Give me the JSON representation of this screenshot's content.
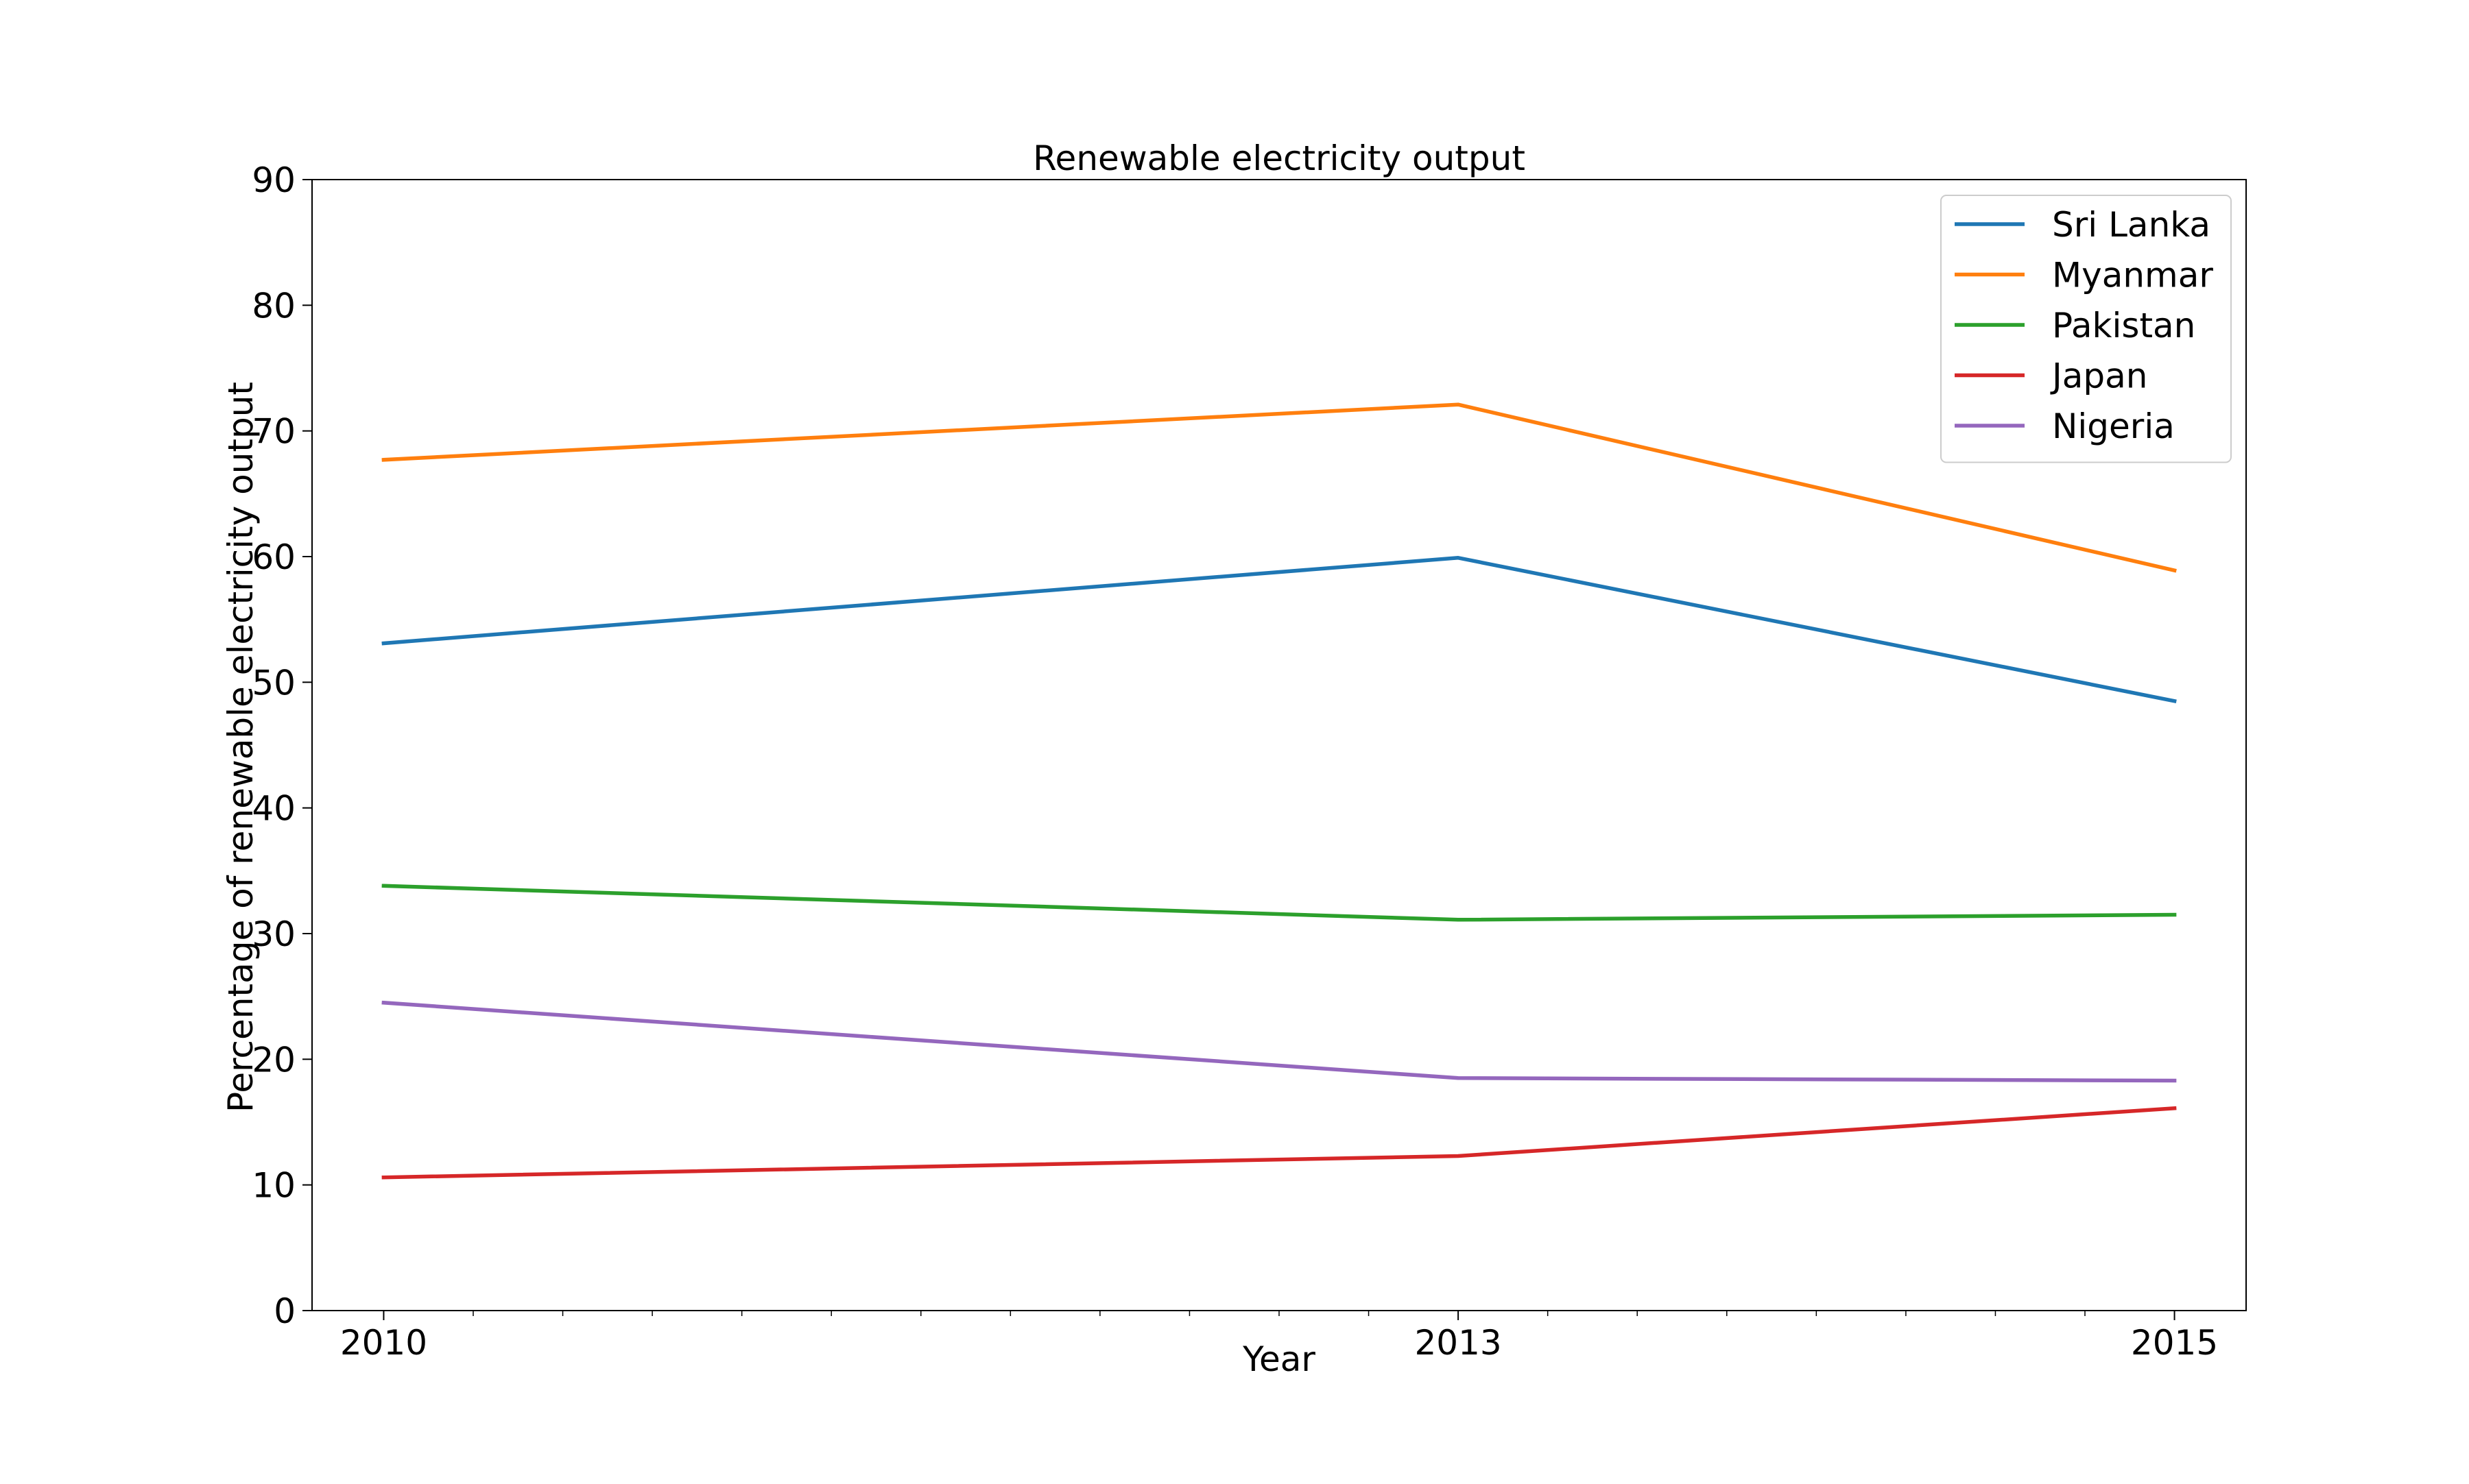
{
  "chart_data": {
    "type": "line",
    "title": "Renewable electricity output",
    "xlabel": "Year",
    "ylabel": "Percentage of renewable electricity output",
    "x": [
      2010,
      2013,
      2015
    ],
    "xticks": [
      "2010",
      "2013",
      "2015"
    ],
    "xlim": [
      2009.8,
      2015.2
    ],
    "ylim": [
      0,
      90
    ],
    "yticks": [
      0,
      10,
      20,
      30,
      40,
      50,
      60,
      70,
      80,
      90
    ],
    "grid": false,
    "legend": {
      "placement": "top-right"
    },
    "series": [
      {
        "name": "Sri Lanka",
        "color": "#1f77b4",
        "values": [
          53.1,
          59.9,
          48.5
        ]
      },
      {
        "name": "Myanmar",
        "color": "#ff7f0e",
        "values": [
          67.7,
          72.1,
          58.9
        ]
      },
      {
        "name": "Pakistan",
        "color": "#2ca02c",
        "values": [
          33.8,
          31.1,
          31.5
        ]
      },
      {
        "name": "Japan",
        "color": "#d62728",
        "values": [
          10.6,
          12.3,
          16.1
        ]
      },
      {
        "name": "Nigeria",
        "color": "#9467bd",
        "values": [
          24.5,
          18.5,
          18.3
        ]
      }
    ]
  }
}
